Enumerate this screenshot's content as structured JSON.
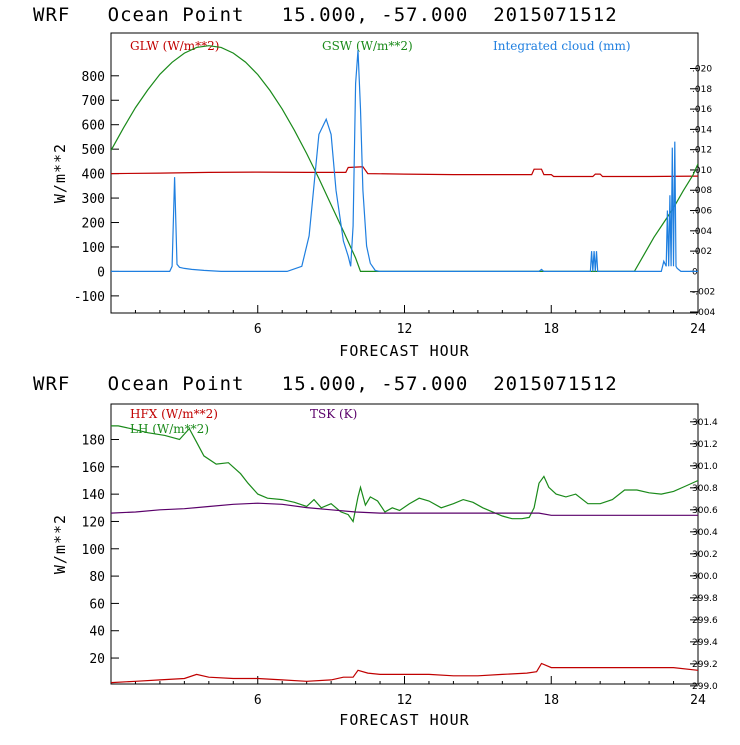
{
  "chart_data": [
    {
      "type": "line",
      "title": "WRF   Ocean Point   15.000, -57.000  2015071512",
      "xlabel": "FORECAST HOUR",
      "ylabel": "W/m**2",
      "xlim": [
        0,
        24
      ],
      "ylim": [
        -170,
        975
      ],
      "y2lim": [
        -0.0041,
        0.0235
      ],
      "xticks": [
        "6",
        "12",
        "18",
        "24"
      ],
      "yticks": [
        "-100",
        "0",
        "100",
        "200",
        "300",
        "400",
        "500",
        "600",
        "700",
        "800"
      ],
      "y2ticks": [
        "-.004",
        "-.002",
        "0",
        ".002",
        ".004",
        ".006",
        ".008",
        ".010",
        ".012",
        ".014",
        ".016",
        ".018",
        ".020"
      ],
      "series": [
        {
          "name": "GLW (W/m**2)",
          "color": "#c00000",
          "axis": "left",
          "x": [
            0,
            2,
            4,
            6,
            8,
            9.6,
            9.7,
            10.3,
            10.5,
            12,
            14,
            17.2,
            17.3,
            17.6,
            17.7,
            18,
            18.1,
            19.7,
            19.8,
            20,
            20.1,
            22,
            24
          ],
          "y": [
            400,
            402,
            405,
            406,
            405,
            405,
            425,
            428,
            400,
            398,
            396,
            396,
            418,
            418,
            396,
            396,
            388,
            388,
            398,
            398,
            388,
            388,
            390
          ]
        },
        {
          "name": "GSW (W/m**2)",
          "color": "#1a8a1a",
          "axis": "left",
          "x": [
            0,
            0.5,
            1,
            1.5,
            2,
            2.5,
            3,
            3.5,
            4,
            4.5,
            5,
            5.5,
            6,
            6.5,
            7,
            7.5,
            8,
            8.5,
            9,
            9.5,
            10,
            10.2,
            21.4,
            21.8,
            22.2,
            22.6,
            23,
            23.4,
            23.8,
            24
          ],
          "y": [
            495,
            585,
            670,
            742,
            806,
            855,
            893,
            916,
            923,
            916,
            893,
            856,
            805,
            740,
            664,
            577,
            482,
            380,
            273,
            165,
            55,
            0,
            0,
            70,
            140,
            200,
            260,
            330,
            395,
            440
          ]
        },
        {
          "name": "Integrated cloud (mm)",
          "color": "#1f7fe0",
          "axis": "right",
          "x": [
            0,
            2.4,
            2.5,
            2.6,
            2.7,
            2.8,
            3.0,
            3.3,
            3.8,
            4.5,
            5.5,
            6.5,
            7.2,
            7.8,
            8.1,
            8.5,
            8.8,
            9.0,
            9.2,
            9.5,
            9.7,
            9.8,
            9.9,
            10.0,
            10.1,
            10.2,
            10.3,
            10.45,
            10.6,
            10.8,
            11,
            17.5,
            17.6,
            17.7,
            19.6,
            19.65,
            19.7,
            19.75,
            19.8,
            19.85,
            19.9,
            22.5,
            22.6,
            22.7,
            22.75,
            22.8,
            22.85,
            22.9,
            22.95,
            23.0,
            23.05,
            23.1,
            23.15,
            23.3,
            24
          ],
          "y": [
            0,
            0,
            0.0005,
            0.0093,
            0.0007,
            0.0004,
            0.0003,
            0.0002,
            0.0001,
            0,
            0,
            0,
            0,
            0.0005,
            0.0035,
            0.0135,
            0.015,
            0.0135,
            0.008,
            0.003,
            0.0015,
            0.0005,
            0.0045,
            0.0185,
            0.0218,
            0.016,
            0.008,
            0.0025,
            0.0008,
            0.0001,
            0,
            0,
            0.0002,
            0,
            0,
            0.002,
            0,
            0.002,
            0,
            0.002,
            0,
            0,
            0.001,
            0.0005,
            0.006,
            0.0005,
            0.0075,
            0.0005,
            0.0122,
            0.0005,
            0.0128,
            0.0005,
            0.0003,
            0,
            0
          ]
        }
      ]
    },
    {
      "type": "line",
      "title": "WRF   Ocean Point   15.000, -57.000  2015071512",
      "xlabel": "FORECAST HOUR",
      "ylabel": "W/m**2",
      "xlim": [
        0,
        24
      ],
      "ylim": [
        1,
        206
      ],
      "y2lim": [
        299.017,
        301.562
      ],
      "xticks": [
        "6",
        "12",
        "18",
        "24"
      ],
      "yticks": [
        "20",
        "40",
        "60",
        "80",
        "100",
        "120",
        "140",
        "160",
        "180"
      ],
      "y2ticks": [
        "299.0",
        "299.2",
        "299.4",
        "299.6",
        "299.8",
        "300.0",
        "300.2",
        "300.4",
        "300.6",
        "300.8",
        "301.0",
        "301.2",
        "301.4"
      ],
      "series": [
        {
          "name": "HFX (W/m**2)",
          "color": "#c00000",
          "axis": "left",
          "x": [
            0,
            1,
            2,
            3,
            3.5,
            4,
            5,
            6,
            7,
            8,
            9,
            9.5,
            9.9,
            10.1,
            10.5,
            11,
            12,
            13,
            14,
            15,
            16,
            17,
            17.4,
            17.6,
            18,
            19,
            20,
            21,
            22,
            23,
            24
          ],
          "y": [
            2,
            3,
            4,
            5,
            8,
            6,
            5,
            5,
            4,
            3,
            4,
            6,
            6,
            11,
            9,
            8,
            8,
            8,
            7,
            7,
            8,
            9,
            10,
            16,
            13,
            13,
            13,
            13,
            13,
            13,
            11
          ]
        },
        {
          "name": "LH (W/m**2)",
          "color": "#1a8a1a",
          "axis": "left",
          "x": [
            0,
            0.3,
            0.8,
            1.5,
            2.2,
            2.8,
            3.2,
            3.5,
            3.8,
            4.3,
            4.8,
            5.3,
            5.6,
            6,
            6.4,
            7,
            7.5,
            8,
            8.3,
            8.6,
            9,
            9.4,
            9.7,
            9.9,
            10.1,
            10.2,
            10.4,
            10.6,
            10.9,
            11.2,
            11.5,
            11.8,
            12.2,
            12.6,
            13,
            13.5,
            14,
            14.4,
            14.8,
            15.2,
            15.6,
            16,
            16.4,
            16.8,
            17.1,
            17.3,
            17.5,
            17.7,
            17.9,
            18.2,
            18.6,
            19,
            19.5,
            20,
            20.5,
            21,
            21.5,
            22,
            22.5,
            23,
            23.5,
            24
          ],
          "y": [
            190,
            190,
            188,
            185,
            183,
            180,
            188,
            178,
            168,
            162,
            163,
            155,
            148,
            140,
            137,
            136,
            134,
            131,
            136,
            130,
            133,
            127,
            125,
            120,
            138,
            145,
            132,
            138,
            135,
            127,
            130,
            128,
            133,
            137,
            135,
            130,
            133,
            136,
            134,
            130,
            127,
            124,
            122,
            122,
            123,
            130,
            148,
            153,
            145,
            140,
            138,
            140,
            133,
            133,
            136,
            143,
            143,
            141,
            140,
            142,
            146,
            150
          ]
        },
        {
          "name": "TSK (K)",
          "color": "#5a006a",
          "axis": "right",
          "x": [
            0,
            1,
            2,
            3,
            4,
            5,
            6,
            7,
            8,
            9,
            10,
            11,
            12,
            13,
            14,
            15,
            16,
            17,
            17.5,
            18,
            19,
            20,
            21,
            22,
            23,
            24
          ],
          "y": [
            300.57,
            300.58,
            300.6,
            300.61,
            300.63,
            300.65,
            300.66,
            300.65,
            300.62,
            300.6,
            300.58,
            300.57,
            300.57,
            300.57,
            300.57,
            300.57,
            300.57,
            300.57,
            300.57,
            300.55,
            300.55,
            300.55,
            300.55,
            300.55,
            300.55,
            300.55
          ]
        }
      ]
    }
  ]
}
